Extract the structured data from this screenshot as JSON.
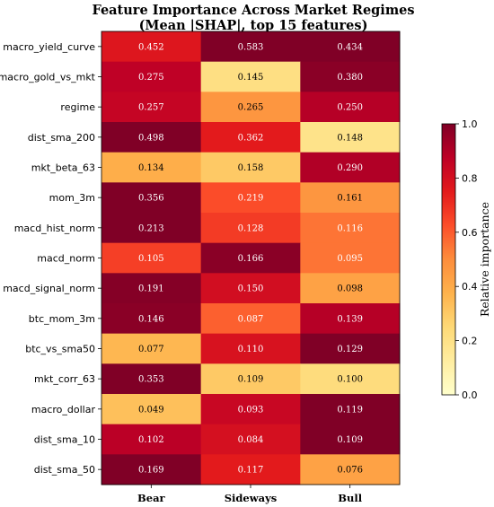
{
  "chart_data": {
    "type": "heatmap",
    "title": "Feature Importance Across Market Regimes",
    "subtitle": "(Mean |SHAP|, top 15 features)",
    "columns": [
      "Bear",
      "Sideways",
      "Bull"
    ],
    "rows": [
      "macro_yield_curve",
      "macro_gold_vs_mkt",
      "regime",
      "dist_sma_200",
      "mkt_beta_63",
      "mom_3m",
      "macd_hist_norm",
      "macd_norm",
      "macd_signal_norm",
      "btc_mom_3m",
      "btc_vs_sma50",
      "mkt_corr_63",
      "macro_dollar",
      "dist_sma_10",
      "dist_sma_50"
    ],
    "values": [
      [
        0.452,
        0.583,
        0.434
      ],
      [
        0.275,
        0.145,
        0.38
      ],
      [
        0.257,
        0.265,
        0.25
      ],
      [
        0.498,
        0.362,
        0.148
      ],
      [
        0.134,
        0.158,
        0.29
      ],
      [
        0.356,
        0.219,
        0.161
      ],
      [
        0.213,
        0.128,
        0.116
      ],
      [
        0.105,
        0.166,
        0.095
      ],
      [
        0.191,
        0.15,
        0.098
      ],
      [
        0.146,
        0.087,
        0.139
      ],
      [
        0.077,
        0.11,
        0.129
      ],
      [
        0.353,
        0.109,
        0.1
      ],
      [
        0.049,
        0.093,
        0.119
      ],
      [
        0.102,
        0.084,
        0.109
      ],
      [
        0.169,
        0.117,
        0.076
      ]
    ],
    "value_labels": [
      [
        "0.452",
        "0.583",
        "0.434"
      ],
      [
        "0.275",
        "0.145",
        "0.380"
      ],
      [
        "0.257",
        "0.265",
        "0.250"
      ],
      [
        "0.498",
        "0.362",
        "0.148"
      ],
      [
        "0.134",
        "0.158",
        "0.290"
      ],
      [
        "0.356",
        "0.219",
        "0.161"
      ],
      [
        "0.213",
        "0.128",
        "0.116"
      ],
      [
        "0.105",
        "0.166",
        "0.095"
      ],
      [
        "0.191",
        "0.150",
        "0.098"
      ],
      [
        "0.146",
        "0.087",
        "0.139"
      ],
      [
        "0.077",
        "0.110",
        "0.129"
      ],
      [
        "0.353",
        "0.109",
        "0.100"
      ],
      [
        "0.049",
        "0.093",
        "0.119"
      ],
      [
        "0.102",
        "0.084",
        "0.109"
      ],
      [
        "0.169",
        "0.117",
        "0.076"
      ]
    ],
    "relative_importance": [
      [
        0.77,
        1.0,
        1.0
      ],
      [
        0.87,
        0.21,
        0.98
      ],
      [
        0.85,
        0.47,
        0.89
      ],
      [
        1.0,
        0.75,
        0.19
      ],
      [
        0.39,
        0.3,
        0.9
      ],
      [
        1.0,
        0.63,
        0.47
      ],
      [
        1.0,
        0.67,
        0.55
      ],
      [
        0.66,
        0.98,
        0.55
      ],
      [
        0.99,
        0.81,
        0.43
      ],
      [
        0.98,
        0.59,
        0.89
      ],
      [
        0.36,
        0.79,
        1.0
      ],
      [
        1.0,
        0.3,
        0.23
      ],
      [
        0.33,
        0.84,
        1.0
      ],
      [
        0.88,
        0.8,
        1.0
      ],
      [
        1.0,
        0.75,
        0.43
      ]
    ],
    "colorbar": {
      "label": "Relative importance",
      "range": [
        0.0,
        1.0
      ],
      "ticks": [
        "0.0",
        "0.2",
        "0.4",
        "0.6",
        "0.8",
        "1.0"
      ],
      "colormap": [
        "#ffffcc",
        "#ffeda0",
        "#fed976",
        "#feb24c",
        "#fd8d3c",
        "#fc4e2a",
        "#e31a1c",
        "#bd0026",
        "#800026"
      ]
    },
    "text_color_dark": "#000000",
    "text_color_light": "#ffffff"
  }
}
